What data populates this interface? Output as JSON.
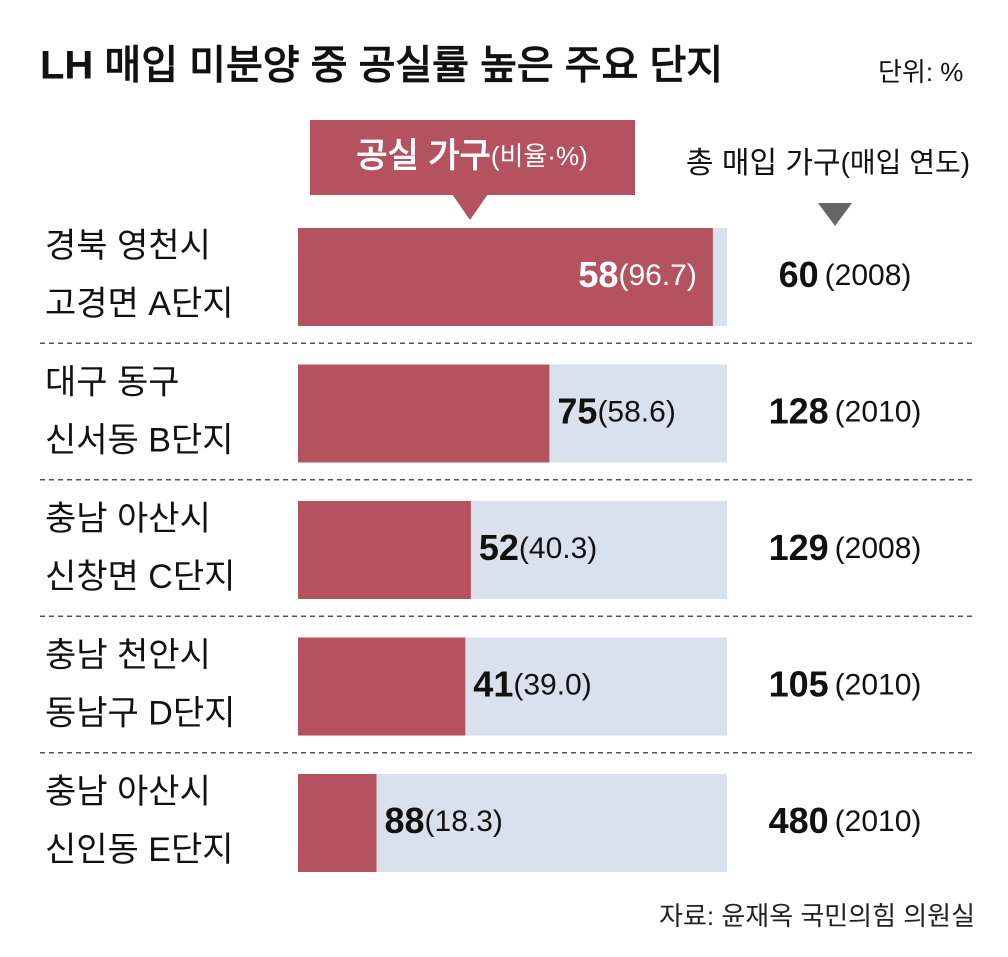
{
  "chart_data": {
    "type": "bar",
    "orientation": "horizontal",
    "title": "LH 매입 미분양 중 공실률 높은 주요 단지",
    "unit": "단위: %",
    "legend": {
      "main": "공실 가구",
      "sub": "(비율·%)"
    },
    "column_header": {
      "main": "총 매입 가구",
      "sub": "(매입 연도)"
    },
    "categories": [
      [
        "경북 영천시",
        "고경면 A단지"
      ],
      [
        "대구 동구",
        "신서동 B단지"
      ],
      [
        "충남 아산시",
        "신창면 C단지"
      ],
      [
        "충남 천안시",
        "동남구 D단지"
      ],
      [
        "충남 아산시",
        "신인동 E단지"
      ]
    ],
    "vacant": [
      58,
      75,
      52,
      41,
      88
    ],
    "ratio": {
      "values": [
        96.7,
        58.6,
        40.3,
        39.0,
        18.3
      ],
      "value_labels": [
        "(96.7)",
        "(58.6)",
        "(40.3)",
        "(39.0)",
        "(18.3)"
      ]
    },
    "total": [
      60,
      128,
      129,
      105,
      480
    ],
    "year": {
      "values": [
        2008,
        2010,
        2008,
        2010,
        2010
      ],
      "value_labels": [
        "(2008)",
        "(2010)",
        "(2008)",
        "(2010)",
        "(2010)"
      ]
    },
    "xlim": [
      0,
      100
    ],
    "color": "#b5525f",
    "track_color": "#d9e1ed",
    "source": "자료: 윤재옥 국민의힘 의원실"
  }
}
